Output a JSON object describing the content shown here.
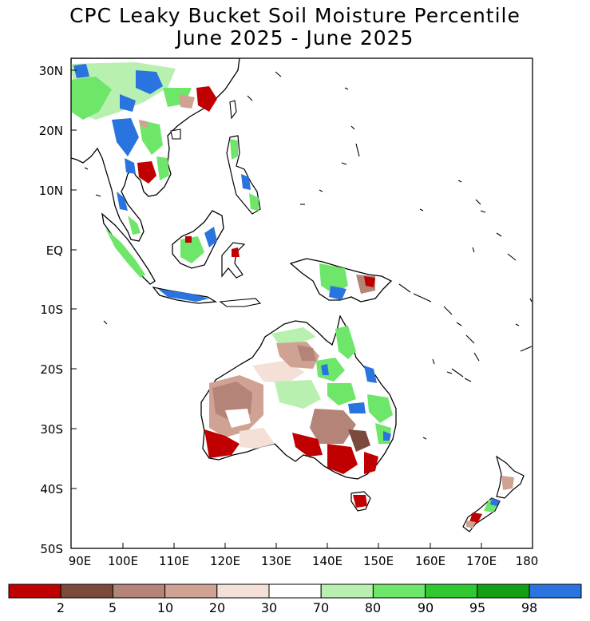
{
  "title_line1": "CPC Leaky Bucket Soil Moisture Percentile",
  "title_line2": "June 2025 - June 2025",
  "lat_labels": [
    "30N",
    "20N",
    "10N",
    "EQ",
    "10S",
    "20S",
    "30S",
    "40S",
    "50S"
  ],
  "lon_labels": [
    "90E",
    "100E",
    "110E",
    "120E",
    "130E",
    "140E",
    "150E",
    "160E",
    "170E",
    "180"
  ],
  "legend": {
    "colors": [
      "#c00000",
      "#7a4a3c",
      "#b48478",
      "#cfa294",
      "#f4e0d6",
      "#ffffff",
      "#b8f0b0",
      "#6ee66a",
      "#30c830",
      "#14a014",
      "#2a74e0"
    ],
    "labels": [
      "2",
      "5",
      "10",
      "20",
      "30",
      "70",
      "80",
      "90",
      "95",
      "98"
    ]
  },
  "colors": {
    "land_outline": "#000000",
    "dry_extreme": "#c00000",
    "wet_extreme": "#2a74e0"
  }
}
